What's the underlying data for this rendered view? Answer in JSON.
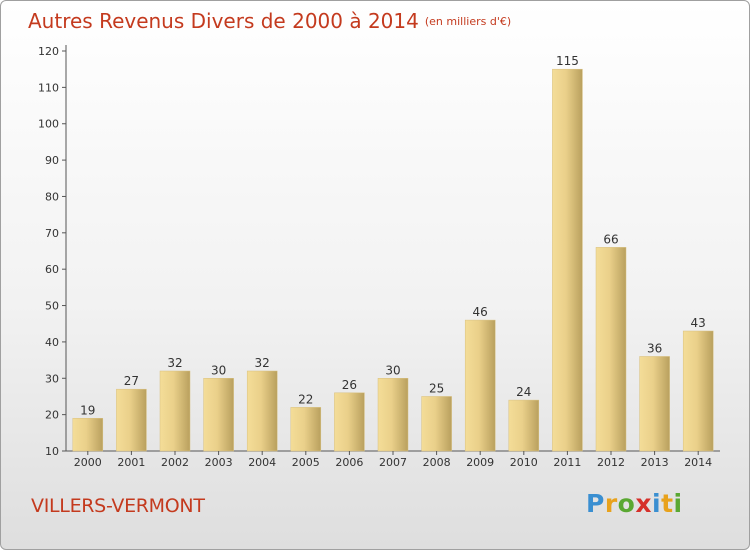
{
  "header": {
    "title": "Autres Revenus Divers de 2000 à 2014",
    "subtitle": "(en milliers d'€)"
  },
  "footer": {
    "commune": "VILLERS-VERMONT",
    "logo": {
      "letters": [
        "P",
        "r",
        "o",
        "x",
        "i",
        "t",
        "i"
      ],
      "colors": [
        "#3a8fd1",
        "#e8a21c",
        "#5aa832",
        "#d6302a",
        "#3a8fd1",
        "#e8a21c",
        "#5aa832"
      ]
    }
  },
  "colors": {
    "title": "#c43a1e",
    "bar_light": "#f4dd98",
    "bar_dark": "#b9a05e"
  },
  "chart_data": {
    "type": "bar",
    "title": "Autres Revenus Divers de 2000 à 2014",
    "categories": [
      "2000",
      "2001",
      "2002",
      "2003",
      "2004",
      "2005",
      "2006",
      "2007",
      "2008",
      "2009",
      "2010",
      "2011",
      "2012",
      "2013",
      "2014"
    ],
    "values": [
      19,
      27,
      32,
      30,
      32,
      22,
      26,
      30,
      25,
      46,
      24,
      115,
      66,
      36,
      43
    ],
    "ylim": [
      10,
      120
    ],
    "yticks": [
      10,
      20,
      30,
      40,
      50,
      60,
      70,
      80,
      90,
      100,
      110,
      120
    ],
    "grid": false,
    "legend": "none"
  }
}
